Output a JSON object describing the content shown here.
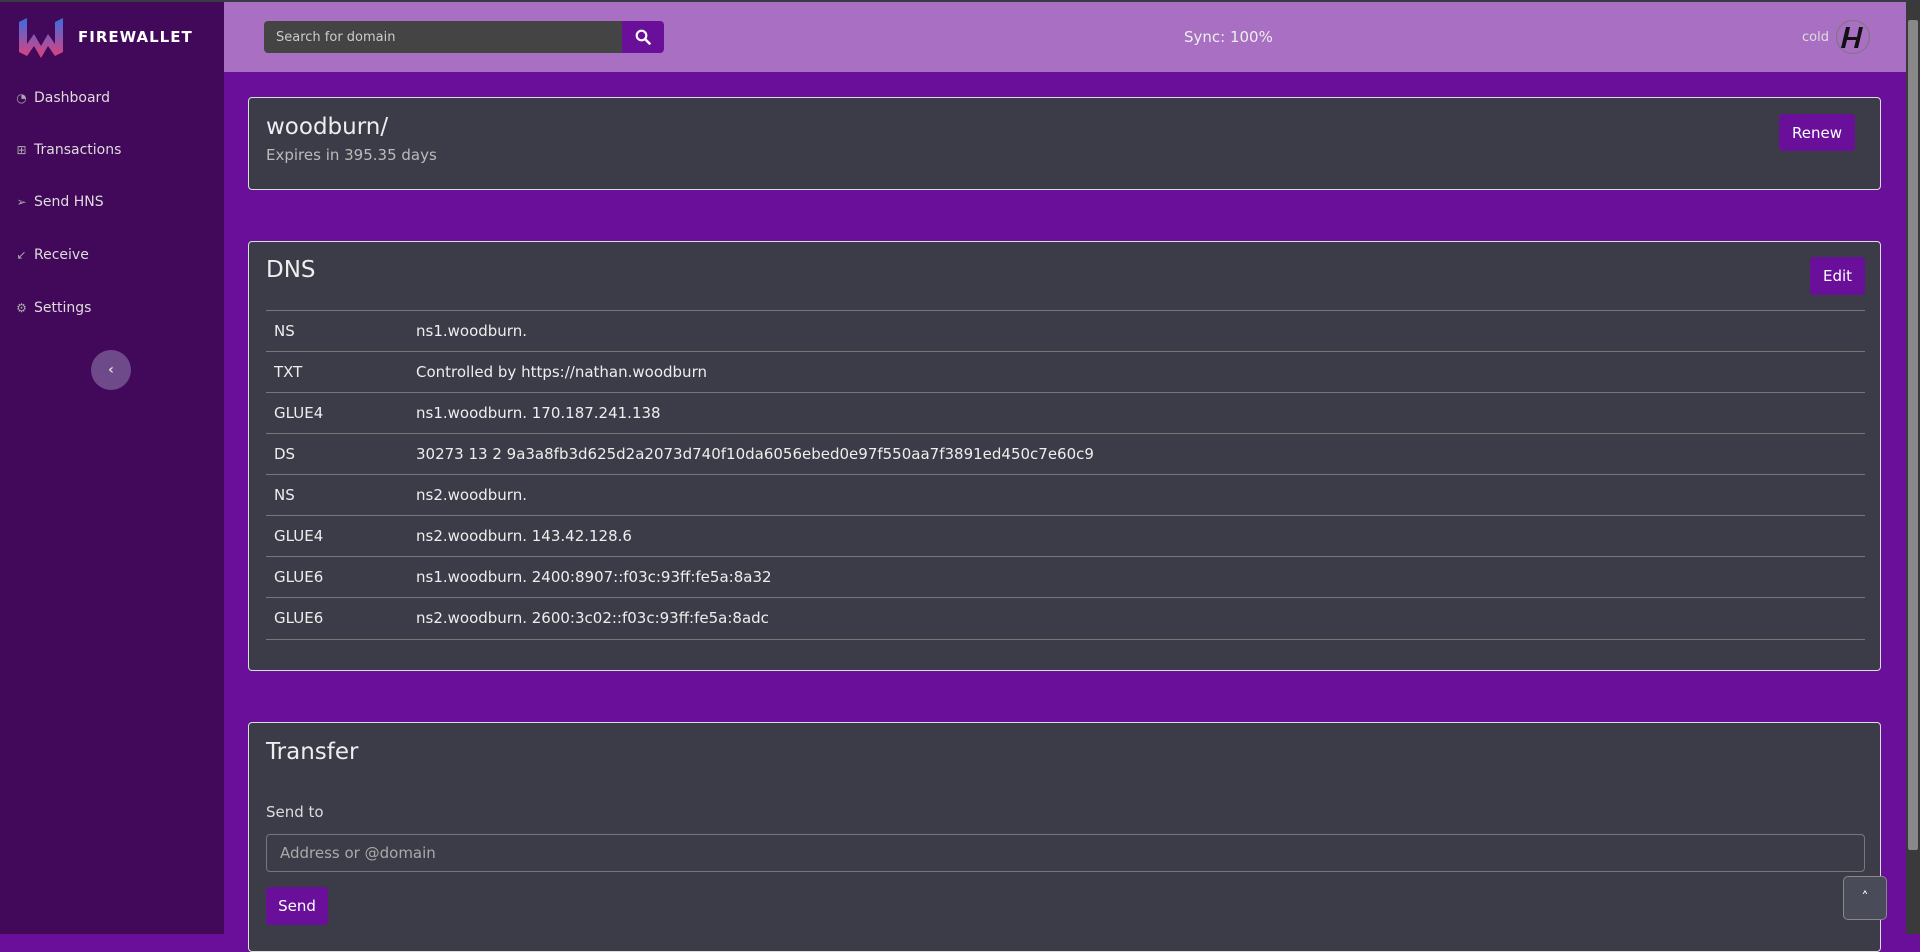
{
  "app": {
    "brand": "FIREWALLET"
  },
  "sidebar": {
    "items": [
      {
        "label": "Dashboard",
        "icon": "dashboard-icon"
      },
      {
        "label": "Transactions",
        "icon": "table-icon"
      },
      {
        "label": "Send HNS",
        "icon": "send-icon"
      },
      {
        "label": "Receive",
        "icon": "receive-icon"
      },
      {
        "label": "Settings",
        "icon": "gear-icon"
      }
    ]
  },
  "header": {
    "search_placeholder": "Search for domain",
    "sync": "Sync: 100%",
    "wallet": "cold"
  },
  "domain": {
    "name": "woodburn/",
    "expires": "Expires in 395.35 days",
    "renew": "Renew"
  },
  "dns": {
    "title": "DNS",
    "edit": "Edit",
    "records": [
      {
        "type": "NS",
        "value": "ns1.woodburn."
      },
      {
        "type": "TXT",
        "value": "Controlled by https://nathan.woodburn"
      },
      {
        "type": "GLUE4",
        "value": "ns1.woodburn. 170.187.241.138"
      },
      {
        "type": "DS",
        "value": "30273 13 2 9a3a8fb3d625d2a2073d740f10da6056ebed0e97f550aa7f3891ed450c7e60c9"
      },
      {
        "type": "NS",
        "value": "ns2.woodburn."
      },
      {
        "type": "GLUE4",
        "value": "ns2.woodburn. 143.42.128.6"
      },
      {
        "type": "GLUE6",
        "value": "ns1.woodburn. 2400:8907::f03c:93ff:fe5a:8a32"
      },
      {
        "type": "GLUE6",
        "value": "ns2.woodburn. 2600:3c02::f03c:93ff:fe5a:8adc"
      }
    ]
  },
  "transfer": {
    "title": "Transfer",
    "send_to_label": "Send to",
    "placeholder": "Address or @domain",
    "send": "Send"
  },
  "colors": {
    "sidebar": "#42085a",
    "header": "#a86fc2",
    "main": "#6a0f9a",
    "card": "#3b3c47"
  }
}
